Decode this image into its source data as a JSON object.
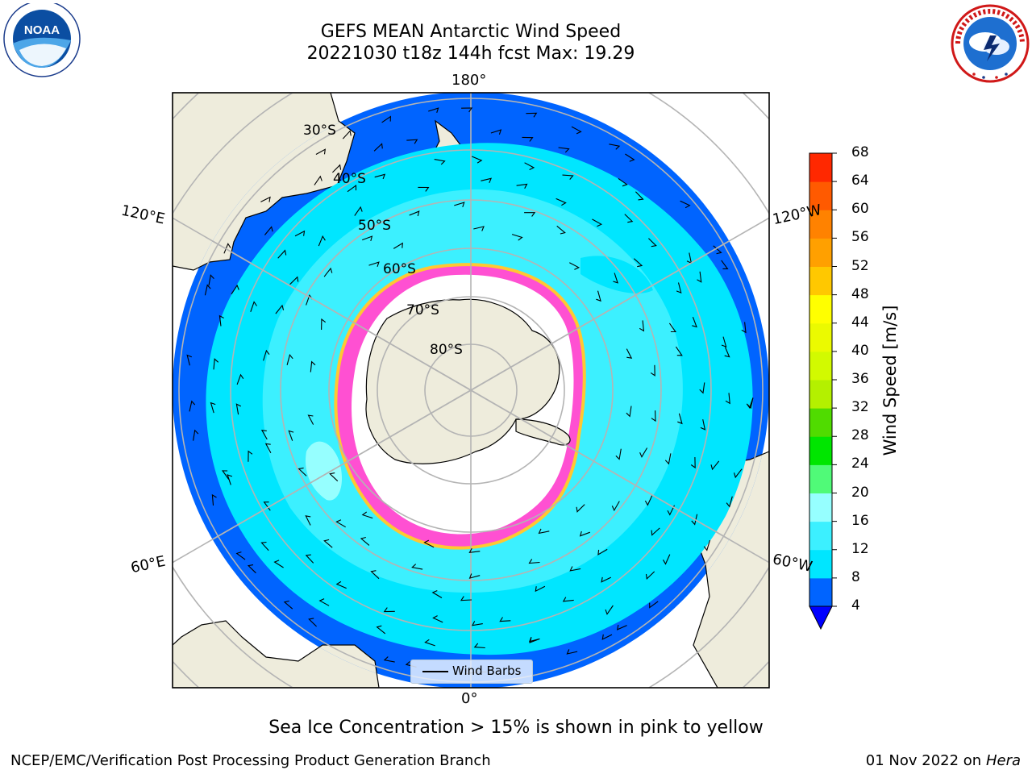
{
  "header": {
    "title_line1": "GEFS MEAN Antarctic Wind Speed",
    "title_line2": "20221030 t18z 144h fcst   Max: 19.29"
  },
  "logos": {
    "noaa_text": "NOAA",
    "noaa_ring_text": "NATIONAL OCEANIC AND ATMOSPHERIC ADMINISTRATION · U.S. DEPARTMENT OF COMMERCE",
    "nws_ring_text": "NATIONAL WEATHER SERVICE"
  },
  "map": {
    "projection": "south-polar-stereographic",
    "longitude_labels": {
      "top": "180°",
      "bottom": "0°",
      "left_upper": "120°E",
      "left_lower": "60°E",
      "right_upper": "120°W",
      "right_lower": "60°W"
    },
    "latitude_labels": [
      "30°S",
      "40°S",
      "50°S",
      "60°S",
      "70°S",
      "80°S"
    ],
    "colors": {
      "land": "#eeecdc",
      "ice": "#ffffff",
      "wind_4_8": "#0064ff",
      "wind_8_12": "#00e6ff",
      "wind_12_16": "#3cf0ff",
      "gridline": "#b4b4b4",
      "sea_ice_edge": "#ff50d2",
      "sea_ice_yellow": "#ffc832"
    }
  },
  "legend": {
    "wind_barbs_label": "Wind Barbs"
  },
  "colorbar": {
    "label": "Wind Speed [m/s]",
    "ticks": [
      "4",
      "8",
      "12",
      "16",
      "20",
      "24",
      "28",
      "32",
      "36",
      "40",
      "44",
      "48",
      "52",
      "56",
      "60",
      "64",
      "68"
    ],
    "colors": [
      "#0064ff",
      "#00e6ff",
      "#3cf0ff",
      "#96ffff",
      "#50fa78",
      "#00e600",
      "#50dc00",
      "#b4f000",
      "#d2fa00",
      "#ebfa00",
      "#ffff00",
      "#ffc800",
      "#ffa000",
      "#ff8200",
      "#ff5a00",
      "#ff2800"
    ],
    "under_color": "#0000ff"
  },
  "caption": "Sea Ice Concentration > 15% is shown in pink to yellow",
  "footer": {
    "left": "NCEP/EMC/Verification Post Processing Product Generation Branch",
    "right_date": "01 Nov 2022 on",
    "right_machine": "Hera"
  }
}
